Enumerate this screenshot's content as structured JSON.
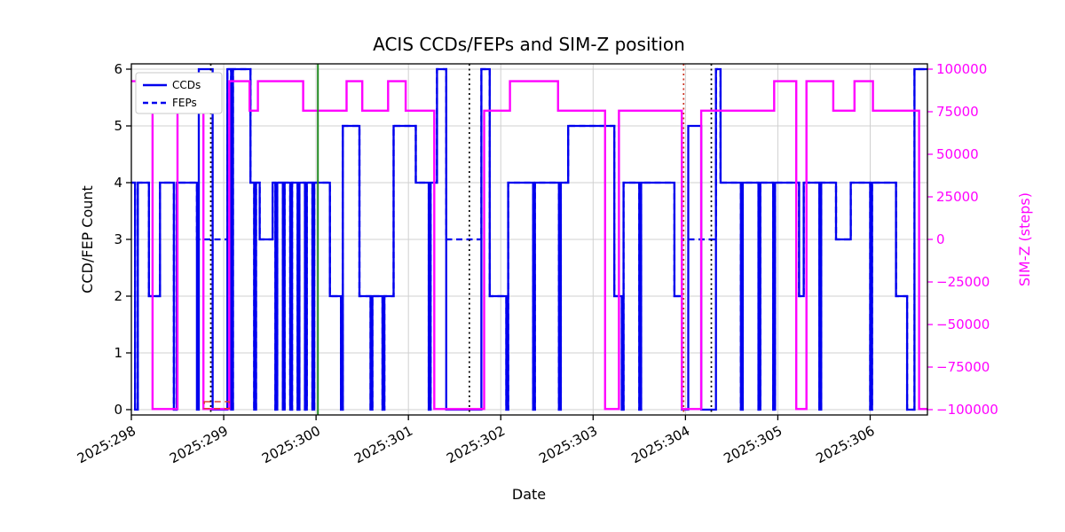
{
  "chart_data": {
    "type": "line",
    "line_shape": "step-post",
    "title": "ACIS CCDs/FEPs and SIM-Z position",
    "xlabel": "Date",
    "ylabel_left": "CCD/FEP Count",
    "ylabel_right": "SIM-Z (steps)",
    "grid": true,
    "legend_position": "upper left",
    "x_domain": [
      298.0,
      306.62
    ],
    "ylim_left": [
      0,
      6
    ],
    "ylim_right": [
      -100000,
      100000
    ],
    "colors": {
      "blue": "#0000ee",
      "magenta": "#ff00ff",
      "grid": "#d0d0d0",
      "spine": "#000000",
      "green": "#228b22",
      "red": "#cc3322",
      "black": "#000000"
    },
    "x_ticks": [
      {
        "value": 298,
        "label": "2025:298"
      },
      {
        "value": 299,
        "label": "2025:299"
      },
      {
        "value": 300,
        "label": "2025:300"
      },
      {
        "value": 301,
        "label": "2025:301"
      },
      {
        "value": 302,
        "label": "2025:302"
      },
      {
        "value": 303,
        "label": "2025:303"
      },
      {
        "value": 304,
        "label": "2025:304"
      },
      {
        "value": 305,
        "label": "2025:305"
      },
      {
        "value": 306,
        "label": "2025:306"
      }
    ],
    "y_ticks_left": [
      {
        "value": 0,
        "label": "0"
      },
      {
        "value": 1,
        "label": "1"
      },
      {
        "value": 2,
        "label": "2"
      },
      {
        "value": 3,
        "label": "3"
      },
      {
        "value": 4,
        "label": "4"
      },
      {
        "value": 5,
        "label": "5"
      },
      {
        "value": 6,
        "label": "6"
      }
    ],
    "y_ticks_right": [
      {
        "value": -100000,
        "label": "−100000"
      },
      {
        "value": -75000,
        "label": "−75000"
      },
      {
        "value": -50000,
        "label": "−50000"
      },
      {
        "value": -25000,
        "label": "−25000"
      },
      {
        "value": 0,
        "label": "0"
      },
      {
        "value": 25000,
        "label": "25000"
      },
      {
        "value": 50000,
        "label": "50000"
      },
      {
        "value": 75000,
        "label": "75000"
      },
      {
        "value": 100000,
        "label": "100000"
      }
    ],
    "series": [
      {
        "name": "CCDs",
        "axis": "left",
        "color": "#0000ee",
        "style": "solid",
        "width": 2.3,
        "steps": [
          [
            298.0,
            4
          ],
          [
            298.04,
            0
          ],
          [
            298.07,
            4
          ],
          [
            298.19,
            2
          ],
          [
            298.31,
            4
          ],
          [
            298.46,
            0
          ],
          [
            298.49,
            4
          ],
          [
            298.71,
            0
          ],
          [
            298.73,
            6
          ],
          [
            298.88,
            0
          ],
          [
            299.04,
            6
          ],
          [
            299.08,
            0
          ],
          [
            299.1,
            6
          ],
          [
            299.29,
            4
          ],
          [
            299.33,
            0
          ],
          [
            299.35,
            4
          ],
          [
            299.39,
            3
          ],
          [
            299.53,
            4
          ],
          [
            299.56,
            0
          ],
          [
            299.58,
            4
          ],
          [
            299.64,
            0
          ],
          [
            299.66,
            4
          ],
          [
            299.72,
            0
          ],
          [
            299.74,
            4
          ],
          [
            299.8,
            0
          ],
          [
            299.82,
            4
          ],
          [
            299.88,
            0
          ],
          [
            299.9,
            4
          ],
          [
            299.96,
            0
          ],
          [
            299.98,
            4
          ],
          [
            300.15,
            2
          ],
          [
            300.27,
            0
          ],
          [
            300.29,
            5
          ],
          [
            300.47,
            2
          ],
          [
            300.59,
            0
          ],
          [
            300.61,
            2
          ],
          [
            300.72,
            0
          ],
          [
            300.74,
            2
          ],
          [
            300.84,
            5
          ],
          [
            301.08,
            4
          ],
          [
            301.22,
            0
          ],
          [
            301.24,
            4
          ],
          [
            301.31,
            6
          ],
          [
            301.41,
            0
          ],
          [
            301.79,
            6
          ],
          [
            301.88,
            2
          ],
          [
            302.06,
            0
          ],
          [
            302.08,
            4
          ],
          [
            302.35,
            0
          ],
          [
            302.37,
            4
          ],
          [
            302.63,
            0
          ],
          [
            302.65,
            4
          ],
          [
            302.73,
            5
          ],
          [
            303.23,
            2
          ],
          [
            303.31,
            0
          ],
          [
            303.33,
            4
          ],
          [
            303.5,
            0
          ],
          [
            303.52,
            4
          ],
          [
            303.88,
            2
          ],
          [
            303.96,
            0
          ],
          [
            304.03,
            5
          ],
          [
            304.17,
            0
          ],
          [
            304.33,
            6
          ],
          [
            304.38,
            4
          ],
          [
            304.6,
            0
          ],
          [
            304.62,
            4
          ],
          [
            304.79,
            0
          ],
          [
            304.81,
            4
          ],
          [
            304.95,
            0
          ],
          [
            304.97,
            4
          ],
          [
            305.23,
            2
          ],
          [
            305.28,
            4
          ],
          [
            305.45,
            0
          ],
          [
            305.47,
            4
          ],
          [
            305.63,
            3
          ],
          [
            305.79,
            4
          ],
          [
            306.0,
            0
          ],
          [
            306.02,
            4
          ],
          [
            306.28,
            2
          ],
          [
            306.4,
            0
          ],
          [
            306.48,
            6
          ]
        ]
      },
      {
        "name": "FEPs",
        "axis": "left",
        "color": "#0000ee",
        "style": "dashed",
        "width": 2.3,
        "steps": [
          [
            298.0,
            4
          ],
          [
            298.04,
            0
          ],
          [
            298.07,
            4
          ],
          [
            298.19,
            2
          ],
          [
            298.31,
            4
          ],
          [
            298.46,
            0
          ],
          [
            298.49,
            4
          ],
          [
            298.71,
            3
          ],
          [
            299.04,
            6
          ],
          [
            299.08,
            0
          ],
          [
            299.1,
            6
          ],
          [
            299.29,
            4
          ],
          [
            299.33,
            0
          ],
          [
            299.35,
            4
          ],
          [
            299.39,
            3
          ],
          [
            299.53,
            4
          ],
          [
            299.56,
            0
          ],
          [
            299.58,
            4
          ],
          [
            299.64,
            0
          ],
          [
            299.66,
            4
          ],
          [
            299.72,
            0
          ],
          [
            299.74,
            4
          ],
          [
            299.8,
            0
          ],
          [
            299.82,
            4
          ],
          [
            299.88,
            0
          ],
          [
            299.9,
            4
          ],
          [
            299.96,
            0
          ],
          [
            299.98,
            4
          ],
          [
            300.15,
            2
          ],
          [
            300.27,
            0
          ],
          [
            300.29,
            5
          ],
          [
            300.47,
            2
          ],
          [
            300.59,
            0
          ],
          [
            300.61,
            2
          ],
          [
            300.72,
            0
          ],
          [
            300.74,
            2
          ],
          [
            300.84,
            5
          ],
          [
            301.08,
            4
          ],
          [
            301.22,
            0
          ],
          [
            301.24,
            4
          ],
          [
            301.31,
            6
          ],
          [
            301.41,
            3
          ],
          [
            301.79,
            6
          ],
          [
            301.88,
            2
          ],
          [
            302.06,
            0
          ],
          [
            302.08,
            4
          ],
          [
            302.35,
            0
          ],
          [
            302.37,
            4
          ],
          [
            302.63,
            0
          ],
          [
            302.65,
            4
          ],
          [
            302.73,
            5
          ],
          [
            303.23,
            2
          ],
          [
            303.31,
            0
          ],
          [
            303.33,
            4
          ],
          [
            303.5,
            0
          ],
          [
            303.52,
            4
          ],
          [
            303.88,
            2
          ],
          [
            303.96,
            3
          ],
          [
            304.33,
            6
          ],
          [
            304.38,
            4
          ],
          [
            304.6,
            0
          ],
          [
            304.62,
            4
          ],
          [
            304.79,
            0
          ],
          [
            304.81,
            4
          ],
          [
            304.95,
            0
          ],
          [
            304.97,
            4
          ],
          [
            305.23,
            2
          ],
          [
            305.28,
            4
          ],
          [
            305.45,
            0
          ],
          [
            305.47,
            4
          ],
          [
            305.63,
            3
          ],
          [
            305.79,
            4
          ],
          [
            306.0,
            0
          ],
          [
            306.02,
            4
          ],
          [
            306.28,
            2
          ],
          [
            306.4,
            0
          ],
          [
            306.48,
            6
          ]
        ]
      },
      {
        "name": "SIM-Z",
        "axis": "right",
        "color": "#ff00ff",
        "style": "solid",
        "width": 2.4,
        "steps": [
          [
            298.0,
            92904
          ],
          [
            298.23,
            -99616
          ],
          [
            298.5,
            75624
          ],
          [
            298.78,
            -99616
          ],
          [
            299.06,
            92904
          ],
          [
            299.28,
            75624
          ],
          [
            299.37,
            92904
          ],
          [
            299.86,
            75624
          ],
          [
            300.33,
            92904
          ],
          [
            300.5,
            75624
          ],
          [
            300.78,
            92904
          ],
          [
            300.97,
            75624
          ],
          [
            301.28,
            -99616
          ],
          [
            301.82,
            75624
          ],
          [
            302.1,
            92904
          ],
          [
            302.62,
            75624
          ],
          [
            303.13,
            -99616
          ],
          [
            303.28,
            75624
          ],
          [
            303.96,
            -99616
          ],
          [
            304.17,
            75624
          ],
          [
            304.96,
            92904
          ],
          [
            305.2,
            -99616
          ],
          [
            305.31,
            92904
          ],
          [
            305.6,
            75624
          ],
          [
            305.83,
            92904
          ],
          [
            306.03,
            75624
          ],
          [
            306.53,
            -99616
          ]
        ]
      }
    ],
    "vlines": [
      {
        "x": 298.86,
        "color": "#000000",
        "style": "dotted"
      },
      {
        "x": 300.02,
        "color": "#228b22",
        "style": "solid"
      },
      {
        "x": 301.66,
        "color": "#000000",
        "style": "dotted"
      },
      {
        "x": 303.98,
        "color": "#cc3322",
        "style": "dotted"
      },
      {
        "x": 304.28,
        "color": "#000000",
        "style": "dotted"
      }
    ],
    "regions": [
      {
        "x1": 298.79,
        "x2": 299.06,
        "y1": 0.02,
        "y2": 0.14,
        "color": "#e04030",
        "style": "dashed"
      }
    ]
  }
}
